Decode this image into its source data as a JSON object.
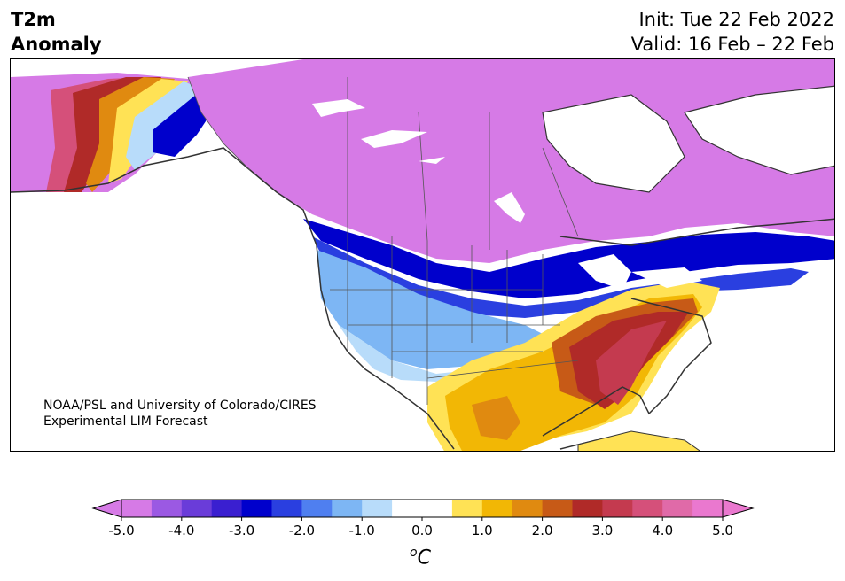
{
  "header": {
    "title_line1": "T2m",
    "title_line2": "Anomaly",
    "init": "Init: Tue 22 Feb 2022",
    "valid": "Valid: 16 Feb – 22 Feb"
  },
  "credit": {
    "line1": "NOAA/PSL and University of Colorado/CIRES",
    "line2": "Experimental LIM Forecast"
  },
  "colorbar": {
    "unit": "C",
    "unit_super": "o",
    "ticks": [
      "-5.0",
      "-4.0",
      "-3.0",
      "-2.0",
      "-1.0",
      "0.0",
      "1.0",
      "2.0",
      "3.0",
      "4.0",
      "5.0"
    ],
    "colors": [
      "#d67ae6",
      "#9b59e3",
      "#6a3cd9",
      "#3a1fd0",
      "#0000cc",
      "#2a3fe0",
      "#4f7ff0",
      "#7db6f4",
      "#b8dcfa",
      "#ffffff",
      "#ffffff",
      "#ffe255",
      "#f2b705",
      "#e08a10",
      "#c75a17",
      "#b02a28",
      "#c43a4f",
      "#d5507a",
      "#e06aa8",
      "#ea78cf"
    ],
    "under_color": "#d67ae6",
    "over_color": "#ea78cf"
  },
  "map": {
    "region": "North America",
    "variable": "2m temperature anomaly"
  }
}
